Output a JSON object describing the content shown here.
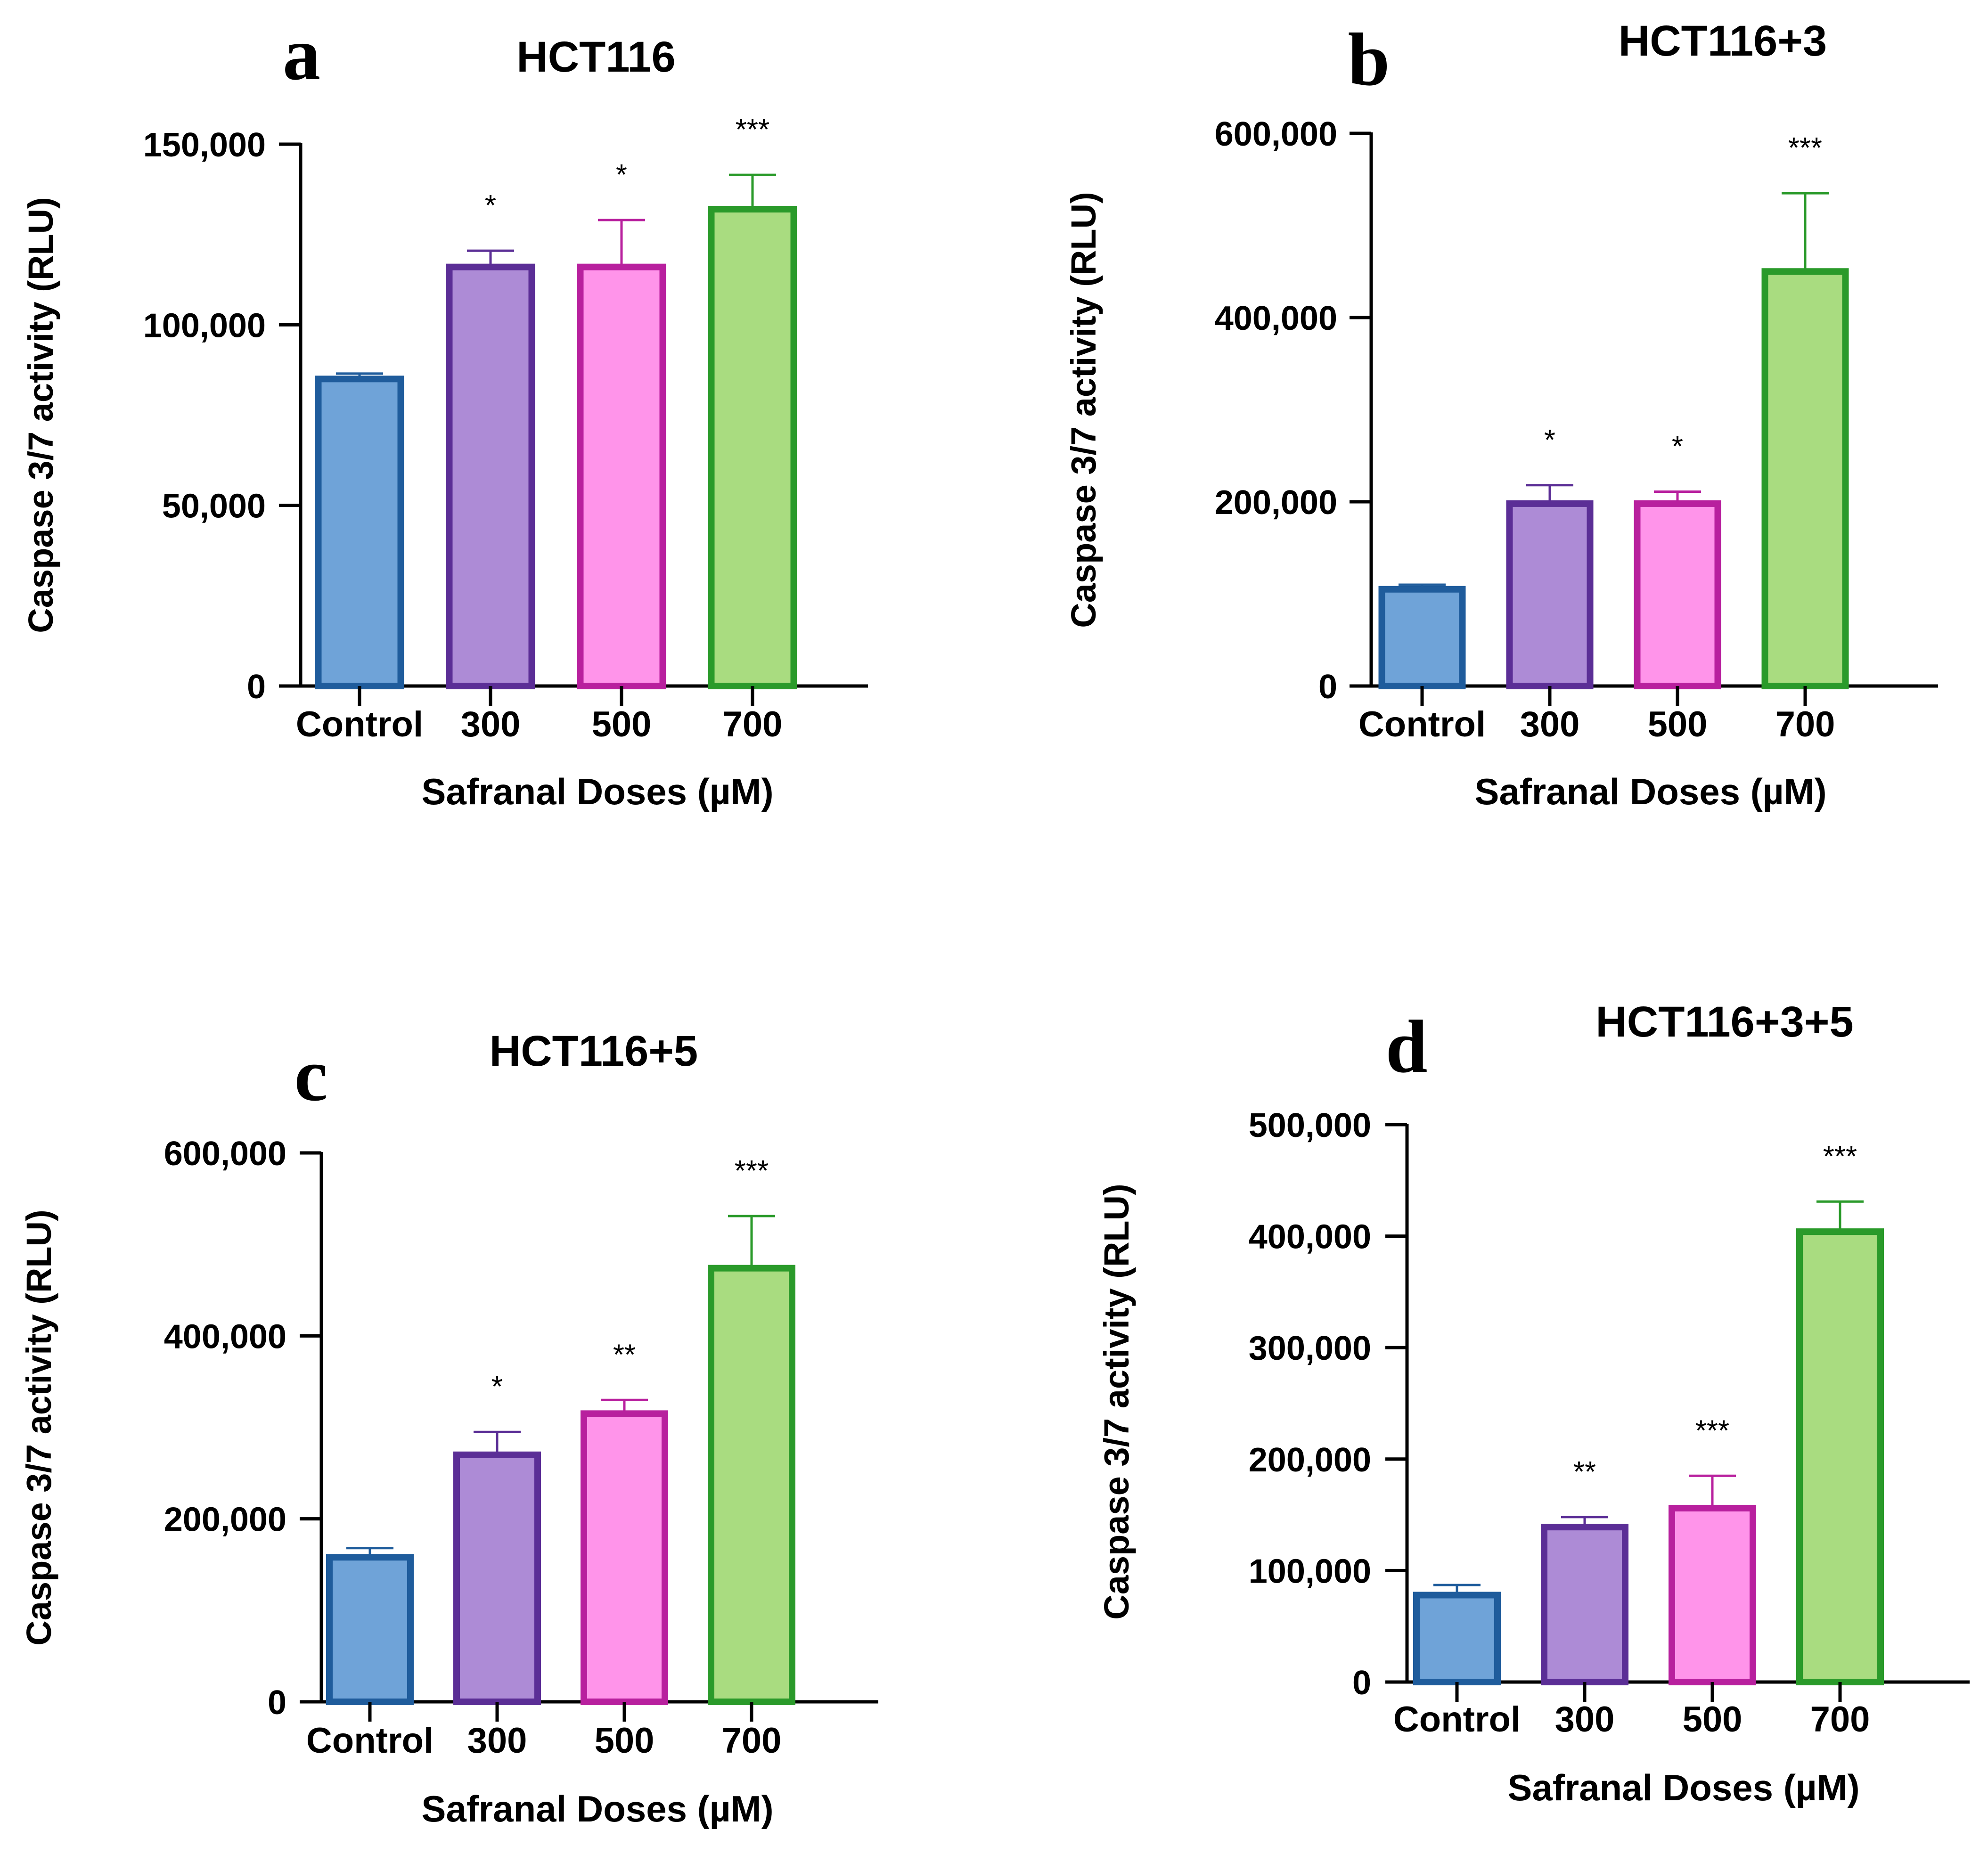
{
  "figure": {
    "charts": [
      {
        "letter": "a"
      },
      {
        "letter": "b"
      },
      {
        "letter": "c"
      },
      {
        "letter": "d"
      }
    ]
  },
  "palette": {
    "control": {
      "fill": "#6fa3d8",
      "stroke": "#1f5c9c"
    },
    "300": {
      "fill": "#ad8bd6",
      "stroke": "#5b2e96"
    },
    "500": {
      "fill": "#ff94ea",
      "stroke": "#b8209e"
    },
    "700": {
      "fill": "#a9dc80",
      "stroke": "#2a9a2a"
    }
  },
  "chart_data": [
    {
      "type": "bar",
      "panel": "a",
      "title": "HCT116",
      "xlabel": "Safranal Doses (µM)",
      "ylabel": "Caspase 3/7 activity (RLU)",
      "categories": [
        "Control",
        "300",
        "500",
        "700"
      ],
      "values": [
        85000,
        116000,
        116000,
        132000
      ],
      "errors": [
        1500,
        4500,
        13000,
        9500
      ],
      "significance": [
        "",
        "*",
        "*",
        "***"
      ],
      "ylim": [
        0,
        150000
      ],
      "yticks": [
        0,
        50000,
        100000,
        150000
      ],
      "ytick_labels": [
        "0",
        "50,000",
        "100,000",
        "150,000"
      ],
      "grid": false
    },
    {
      "type": "bar",
      "panel": "b",
      "title": "HCT116+3",
      "xlabel": "Safranal Doses (µM)",
      "ylabel": "Caspase 3/7 activity (RLU)",
      "categories": [
        "Control",
        "300",
        "500",
        "700"
      ],
      "values": [
        105000,
        198000,
        198000,
        450000
      ],
      "errors": [
        5000,
        20000,
        13000,
        85000
      ],
      "significance": [
        "",
        "*",
        "*",
        "***"
      ],
      "ylim": [
        0,
        600000
      ],
      "yticks": [
        0,
        200000,
        400000,
        600000
      ],
      "ytick_labels": [
        "0",
        "200,000",
        "400,000",
        "600,000"
      ],
      "grid": false
    },
    {
      "type": "bar",
      "panel": "c",
      "title": "HCT116+5",
      "xlabel": "Safranal Doses (µM)",
      "ylabel": "Caspase 3/7 activity (RLU)",
      "categories": [
        "Control",
        "300",
        "500",
        "700"
      ],
      "values": [
        158000,
        270000,
        315000,
        474000
      ],
      "errors": [
        10000,
        25000,
        15000,
        57000
      ],
      "significance": [
        "",
        "*",
        "**",
        "***"
      ],
      "ylim": [
        0,
        600000
      ],
      "yticks": [
        0,
        200000,
        400000,
        600000
      ],
      "ytick_labels": [
        "0",
        "200,000",
        "400,000",
        "600,000"
      ],
      "grid": false
    },
    {
      "type": "bar",
      "panel": "d",
      "title": "HCT116+3+5",
      "xlabel": "Safranal Doses (µM)",
      "ylabel": "Caspase 3/7 activity (RLU)",
      "categories": [
        "Control",
        "300",
        "500",
        "700"
      ],
      "values": [
        78000,
        139000,
        156000,
        404000
      ],
      "errors": [
        9000,
        9000,
        29000,
        27000
      ],
      "significance": [
        "",
        "**",
        "***",
        "***"
      ],
      "ylim": [
        0,
        500000
      ],
      "yticks": [
        0,
        100000,
        200000,
        300000,
        400000,
        500000
      ],
      "ytick_labels": [
        "0",
        "100,000",
        "200,000",
        "300,000",
        "400,000",
        "500,000"
      ],
      "grid": false
    }
  ]
}
